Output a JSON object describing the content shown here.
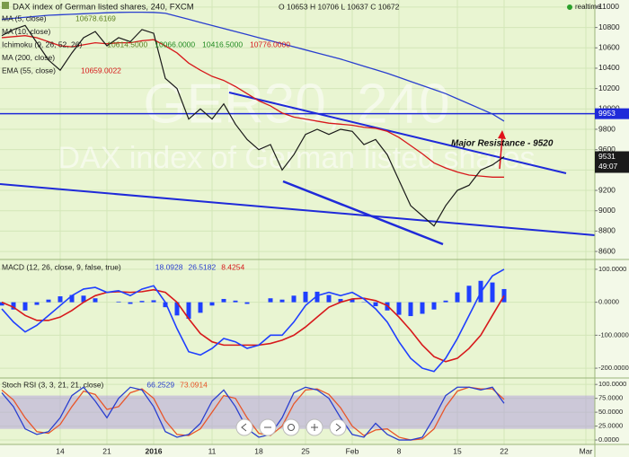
{
  "chart_data": [
    {
      "type": "line",
      "title": "DAX index of German listed shares, 240, FXCM",
      "ohlc_label": "O 10653 H 10706 L 10637 C 10672",
      "watermark": [
        "GER30, 240",
        "DAX index of German listed shares"
      ],
      "legend": [
        {
          "name": "MA (5, close)",
          "value": "10678.6169",
          "color": "#5a7f1e"
        },
        {
          "name": "MA (10, close)",
          "color": "#2a3fcf"
        },
        {
          "name": "Ichimoku (9, 26, 52, 26)",
          "values": [
            "10614.5000",
            "10066.0000",
            "10416.5000",
            "10776.0000"
          ],
          "colors": [
            "#5a7f1e",
            "#1f8a1f",
            "#1f8a1f",
            "#d7191c"
          ]
        },
        {
          "name": "MA (200, close)",
          "color": "#2a3fcf"
        },
        {
          "name": "EMA (55, close)",
          "value": "10659.0022",
          "color": "#d7191c"
        }
      ],
      "annotation": "Major Resistance - 9520",
      "status": "realtime",
      "countdown": "49:07",
      "hline": 9953,
      "categories": [
        null,
        null,
        null,
        null,
        null,
        "14",
        null,
        null,
        null,
        "21",
        null,
        null,
        null,
        "2016",
        null,
        null,
        null,
        null,
        "11",
        null,
        null,
        null,
        "18",
        null,
        null,
        null,
        "25",
        null,
        null,
        null,
        "Feb",
        null,
        null,
        null,
        "8",
        null,
        null,
        null,
        null,
        "15",
        null,
        null,
        null,
        "22",
        null,
        null,
        null,
        null,
        null,
        null,
        "Mar"
      ],
      "values": [
        10720,
        10780,
        10820,
        10650,
        10480,
        10380,
        10550,
        10700,
        10760,
        10620,
        10700,
        10660,
        10780,
        10743,
        10300,
        10200,
        9900,
        10000,
        9900,
        10050,
        9850,
        9700,
        9600,
        9650,
        9400,
        9550,
        9750,
        9800,
        9750,
        9800,
        9780,
        9650,
        9700,
        9550,
        9300,
        9050,
        8950,
        8850,
        9050,
        9200,
        9250,
        9400,
        9450,
        9531,
        null,
        null,
        null,
        null,
        null,
        null,
        null
      ],
      "color": "#1a1a1a",
      "series": [
        {
          "color": "#d7191c",
          "values": [
            10700,
            10710,
            10720,
            10700,
            10660,
            10620,
            10610,
            10630,
            10650,
            10640,
            10650,
            10650,
            10670,
            10680,
            10620,
            10550,
            10450,
            10380,
            10320,
            10280,
            10220,
            10150,
            10080,
            10030,
            9960,
            9920,
            9900,
            9880,
            9860,
            9850,
            9840,
            9820,
            9810,
            9780,
            9720,
            9640,
            9560,
            9470,
            9420,
            9380,
            9350,
            9340,
            9330,
            9330,
            null,
            null,
            null,
            null,
            null,
            null,
            null
          ]
        },
        {
          "color": "#2a3fcf",
          "values": [
            10880,
            10890,
            10900,
            10910,
            10920,
            10925,
            10930,
            10935,
            10940,
            10945,
            10948,
            10950,
            10950,
            10948,
            10940,
            10910,
            10880,
            10850,
            10820,
            10790,
            10760,
            10730,
            10700,
            10670,
            10640,
            10610,
            10580,
            10550,
            10520,
            10490,
            10455,
            10420,
            10385,
            10350,
            10310,
            10270,
            10230,
            10190,
            10150,
            10100,
            10050,
            10000,
            9950,
            9880,
            null,
            null,
            null,
            null,
            null,
            null,
            null
          ]
        }
      ],
      "ylim": [
        8530,
        11070
      ],
      "yticks": [
        8600,
        8800,
        9000,
        9200,
        9400,
        9600,
        9800,
        10000,
        10200,
        10400,
        10600,
        10800,
        11000
      ],
      "grid": true
    },
    {
      "type": "macd",
      "title": "MACD (12, 26, close, 9, false, true)",
      "header_values": [
        "18.0928",
        "26.5182",
        "8.4254"
      ],
      "header_colors": [
        "#2a3fcf",
        "#2a3fcf",
        "#d7191c"
      ],
      "histogram": {
        "color": "#1f3fff",
        "values": [
          -10,
          -22,
          -25,
          -8,
          8,
          18,
          22,
          20,
          12,
          0,
          2,
          -5,
          4,
          6,
          -15,
          -40,
          -50,
          -32,
          -10,
          10,
          5,
          -5,
          0,
          12,
          8,
          20,
          32,
          32,
          22,
          10,
          10,
          -1,
          -12,
          -25,
          -38,
          -42,
          -35,
          -22,
          5,
          30,
          50,
          65,
          60,
          40
        ]
      },
      "macd": {
        "color": "#1f3fff",
        "values": [
          -20,
          -60,
          -90,
          -70,
          -40,
          -10,
          20,
          40,
          45,
          30,
          35,
          20,
          40,
          50,
          0,
          -80,
          -150,
          -160,
          -140,
          -110,
          -120,
          -140,
          -130,
          -100,
          -100,
          -60,
          -10,
          20,
          30,
          20,
          30,
          10,
          -20,
          -60,
          -120,
          -170,
          -200,
          -210,
          -170,
          -110,
          -40,
          30,
          80,
          100
        ]
      },
      "signal": {
        "color": "#d7191c",
        "values": [
          0,
          -15,
          -40,
          -55,
          -55,
          -45,
          -25,
          0,
          20,
          30,
          32,
          30,
          32,
          38,
          30,
          0,
          -50,
          -95,
          -120,
          -130,
          -130,
          -130,
          -130,
          -125,
          -115,
          -100,
          -75,
          -45,
          -15,
          0,
          10,
          12,
          5,
          -10,
          -45,
          -85,
          -130,
          -165,
          -180,
          -170,
          -140,
          -100,
          -40,
          20
        ]
      },
      "ylim": [
        -227,
        127
      ],
      "yticks": [
        {
          "value": 100,
          "label": "100.0000"
        },
        {
          "value": 0,
          "label": "0.0000"
        },
        {
          "value": -100,
          "label": "-100.0000"
        },
        {
          "value": -200,
          "label": "-200.0000"
        }
      ]
    },
    {
      "type": "stoch",
      "title": "Stoch RSI (3, 3, 21, 21, close)",
      "header_values": [
        "66.2529",
        "73.0914"
      ],
      "header_colors": [
        "#2a3fcf",
        "#e8562a"
      ],
      "band": [
        80,
        20
      ],
      "k": {
        "color": "#2a3fcf",
        "values": [
          85,
          60,
          20,
          10,
          15,
          40,
          80,
          95,
          70,
          40,
          75,
          95,
          90,
          60,
          15,
          5,
          10,
          30,
          70,
          90,
          60,
          20,
          5,
          10,
          40,
          85,
          95,
          90,
          75,
          40,
          10,
          5,
          30,
          10,
          0,
          0,
          5,
          40,
          80,
          95,
          95,
          90,
          95,
          66
        ]
      },
      "d": {
        "color": "#e8562a",
        "values": [
          90,
          72,
          40,
          15,
          12,
          28,
          60,
          88,
          82,
          55,
          60,
          85,
          92,
          75,
          35,
          10,
          8,
          20,
          50,
          80,
          75,
          40,
          12,
          8,
          25,
          65,
          90,
          92,
          82,
          58,
          25,
          8,
          18,
          20,
          5,
          0,
          2,
          20,
          60,
          88,
          95,
          92,
          92,
          73
        ]
      },
      "ylim": [
        -8,
        110
      ],
      "yticks": [
        {
          "value": 100,
          "label": "100.0000"
        },
        {
          "value": 75,
          "label": "75.0000"
        },
        {
          "value": 50,
          "label": "50.0000"
        },
        {
          "value": 25,
          "label": "25.0000"
        },
        {
          "value": 0,
          "label": "0.0000"
        }
      ]
    }
  ]
}
